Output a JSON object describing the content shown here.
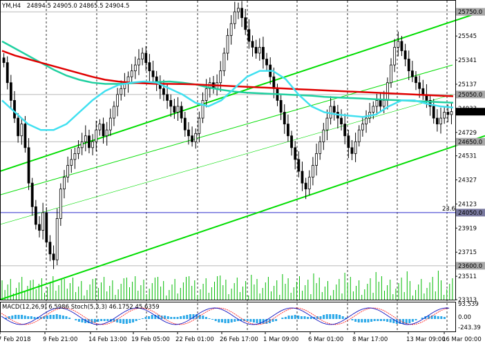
{
  "header": {
    "symbol_timeframe": "YM,H4",
    "ohlc": "24894.5 24905.0 24865.5 24904.5"
  },
  "indicator_header": "MACD(12,26,9) 6.5986   Stoch(5,3,3) 46.1752 45.6359",
  "colors": {
    "background": "#ffffff",
    "candles": "#000000",
    "ema_red": "#e00000",
    "ema_teal": "#20d0a0",
    "ema_cyan": "#40e0f0",
    "channel": "#00dd00",
    "fib_line": "#2c2ccc",
    "level_line": "#b8b8b8",
    "volume": "#00bb00",
    "macd_hist": "#2aa8e8",
    "stoch_main": "#1010c0",
    "stoch_signal": "#ff2020",
    "current_price_bg": "#000000"
  },
  "chart_data": {
    "type": "candlestick",
    "ylim": [
      23313,
      25850
    ],
    "y_ticks": [
      "25750.0",
      "25545",
      "25341",
      "25137",
      "25050.0",
      "24933",
      "24904.5",
      "24729",
      "24650.0",
      "24531",
      "24327",
      "24123",
      "24050.0",
      "23919",
      "23715",
      "23600.0",
      "23511",
      "23313"
    ],
    "x_ticks": [
      "7 Feb 2018",
      "9 Feb 21:00",
      "14 Feb 13:00",
      "19 Feb 05:00",
      "22 Feb 01:00",
      "26 Feb 17:00",
      "1 Mar 09:00",
      "6 Mar 01:00",
      "8 Mar 17:00",
      "13 Mar 09:00",
      "16 Mar 00:00"
    ],
    "current_price": "24904.5",
    "levels": [
      {
        "value": 25750,
        "label": "25750.0"
      },
      {
        "value": 25050,
        "label": "25050.0"
      },
      {
        "value": 24650,
        "label": "24650.0"
      },
      {
        "value": 23600,
        "label": "23600.0"
      }
    ],
    "fib_level": {
      "value": 24050,
      "label": "24050.0",
      "tag": "23.6"
    },
    "closes": [
      25320,
      25150,
      25000,
      24850,
      24700,
      24800,
      24600,
      24300,
      24100,
      23950,
      23900,
      24050,
      23800,
      23700,
      23650,
      24000,
      24250,
      24350,
      24450,
      24500,
      24550,
      24600,
      24650,
      24700,
      24600,
      24650,
      24750,
      24800,
      24700,
      24750,
      24850,
      24950,
      25050,
      25100,
      25150,
      25200,
      25250,
      25300,
      25350,
      25400,
      25320,
      25250,
      25200,
      25150,
      25100,
      25050,
      25000,
      24950,
      24900,
      24950,
      24850,
      24750,
      24700,
      24650,
      24720,
      24850,
      25000,
      25100,
      25150,
      25100,
      25150,
      25250,
      25400,
      25550,
      25650,
      25750,
      25780,
      25700,
      25600,
      25500,
      25450,
      25400,
      25450,
      25350,
      25300,
      25200,
      25100,
      25000,
      24900,
      24800,
      24700,
      24600,
      24500,
      24400,
      24300,
      24250,
      24350,
      24450,
      24550,
      24650,
      24750,
      24850,
      24950,
      24900,
      24850,
      24800,
      24700,
      24600,
      24550,
      24650,
      24750,
      24800,
      24850,
      24900,
      24950,
      25000,
      24950,
      25000,
      25150,
      25300,
      25450,
      25500,
      25420,
      25350,
      25250,
      25200,
      25150,
      25100,
      25050,
      25000,
      24950,
      24850,
      24800,
      24850,
      24900,
      24880,
      24905
    ],
    "ema_red": [
      25420,
      25380,
      25350,
      25320,
      25290,
      25260,
      25230,
      25200,
      25175,
      25160,
      25150,
      25145,
      25140,
      25140,
      25138,
      25135,
      25130,
      25125,
      25120,
      25115,
      25110,
      25105,
      25100,
      25095,
      25090,
      25085,
      25080,
      25075,
      25070,
      25065,
      25060,
      25055,
      25050,
      25045,
      25040,
      25035
    ],
    "ema_teal": [
      25500,
      25440,
      25380,
      25320,
      25260,
      25210,
      25175,
      25150,
      25140,
      25140,
      25145,
      25150,
      25155,
      25160,
      25150,
      25135,
      25110,
      25090,
      25075,
      25065,
      25060,
      25055,
      25050,
      25045,
      25040,
      25030,
      25025,
      25020,
      25015,
      25010,
      25005,
      25000,
      24995,
      24990,
      24985,
      24980
    ],
    "ema_cyan": [
      25000,
      24900,
      24800,
      24750,
      24750,
      24800,
      24900,
      25000,
      25080,
      25130,
      25150,
      25160,
      25150,
      25100,
      25050,
      24980,
      24950,
      25000,
      25100,
      25200,
      25250,
      25250,
      25180,
      25050,
      24950,
      24900,
      24880,
      24870,
      24860,
      24880,
      24950,
      25000,
      25000,
      24970,
      24950,
      24940
    ],
    "channel_top_from": [
      0,
      24400
    ],
    "channel_top_to": [
      702,
      25760
    ],
    "channel_bottom_from": [
      0,
      23313
    ],
    "channel_bottom_to": [
      702,
      24700
    ]
  }
}
